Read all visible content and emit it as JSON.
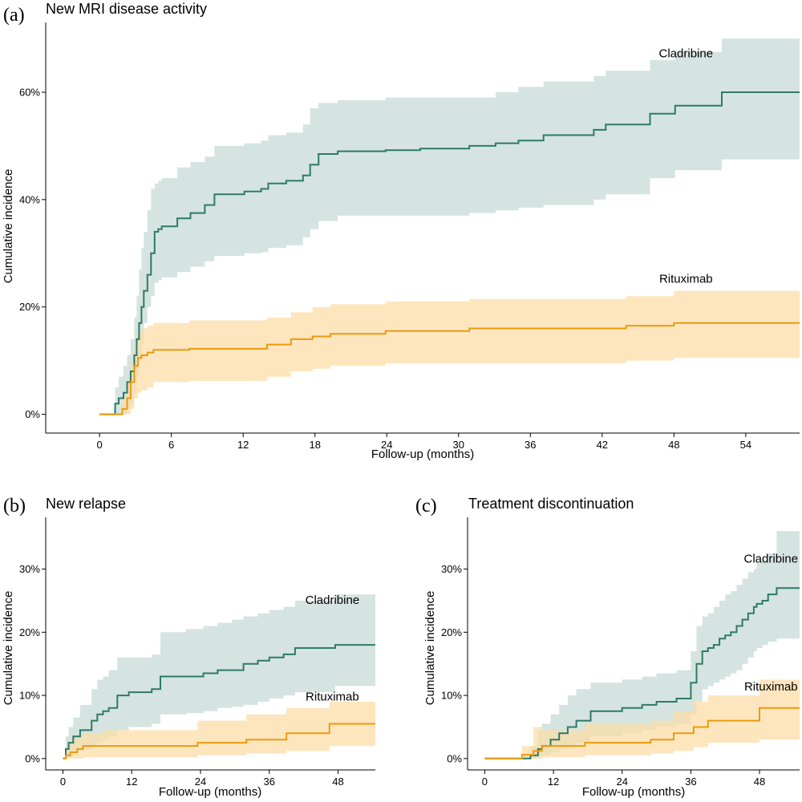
{
  "colors": {
    "cladribine": "#2e7a66",
    "rituximab": "#eb9b0e",
    "cladribine_band": "#c5dad4",
    "rituximab_band": "#fcdca5"
  },
  "chart_data": [
    {
      "id": "a",
      "type": "line",
      "step": true,
      "panel_letter": "(a)",
      "title": "New MRI disease activity",
      "xlabel": "Follow-up (months)",
      "ylabel": "Cumulative incidence",
      "xlim": [
        -4.5,
        58.5
      ],
      "ylim": [
        -0.035,
        0.73
      ],
      "xticks": [
        0,
        6,
        12,
        18,
        24,
        30,
        36,
        42,
        48,
        54
      ],
      "xtick_labels": [
        "0",
        "6",
        "12",
        "18",
        "24",
        "30",
        "36",
        "42",
        "48",
        "54"
      ],
      "yticks": [
        0,
        0.2,
        0.4,
        0.6
      ],
      "ytick_labels": [
        "0%",
        "20%",
        "40%",
        "60%"
      ],
      "series": [
        {
          "name": "Cladribine",
          "label_at": [
            49,
            0.665
          ],
          "x": [
            0,
            1.3,
            1.6,
            2.0,
            2.3,
            2.6,
            2.9,
            3.1,
            3.3,
            3.5,
            3.7,
            4.0,
            4.3,
            4.6,
            4.9,
            5.2,
            6.5,
            7.6,
            8.8,
            9.6,
            12.1,
            13.5,
            14.1,
            15.6,
            17.0,
            17.6,
            18.3,
            19.9,
            23.9,
            26.8,
            30.9,
            33.1,
            35.0,
            37.1,
            41.3,
            42.3,
            46.0,
            48.1,
            52.0,
            58.5
          ],
          "y": [
            0,
            0.02,
            0.03,
            0.04,
            0.06,
            0.08,
            0.11,
            0.14,
            0.17,
            0.2,
            0.23,
            0.26,
            0.3,
            0.34,
            0.345,
            0.35,
            0.365,
            0.375,
            0.39,
            0.41,
            0.415,
            0.42,
            0.43,
            0.435,
            0.445,
            0.465,
            0.485,
            0.49,
            0.492,
            0.495,
            0.5,
            0.505,
            0.51,
            0.52,
            0.53,
            0.54,
            0.56,
            0.575,
            0.6,
            0.6
          ],
          "lower": [
            0,
            0,
            0,
            0,
            0.01,
            0.02,
            0.04,
            0.07,
            0.1,
            0.13,
            0.17,
            0.2,
            0.22,
            0.245,
            0.25,
            0.255,
            0.265,
            0.275,
            0.285,
            0.295,
            0.3,
            0.302,
            0.31,
            0.315,
            0.33,
            0.345,
            0.36,
            0.37,
            0.37,
            0.37,
            0.375,
            0.38,
            0.385,
            0.39,
            0.4,
            0.41,
            0.44,
            0.455,
            0.475,
            0.475
          ],
          "upper": [
            0,
            0.05,
            0.07,
            0.09,
            0.11,
            0.14,
            0.18,
            0.22,
            0.27,
            0.31,
            0.34,
            0.38,
            0.42,
            0.43,
            0.435,
            0.44,
            0.46,
            0.47,
            0.48,
            0.5,
            0.505,
            0.51,
            0.52,
            0.525,
            0.54,
            0.57,
            0.58,
            0.585,
            0.59,
            0.59,
            0.59,
            0.6,
            0.61,
            0.62,
            0.63,
            0.64,
            0.66,
            0.675,
            0.7,
            0.7
          ]
        },
        {
          "name": "Rituximab",
          "label_at": [
            49,
            0.245
          ],
          "x": [
            0,
            1.9,
            2.3,
            2.6,
            2.9,
            3.2,
            3.5,
            4.0,
            4.5,
            7.5,
            14.0,
            16.0,
            17.8,
            19.3,
            23.9,
            30.9,
            44.0,
            48.0,
            58.5
          ],
          "y": [
            0,
            0.01,
            0.03,
            0.06,
            0.09,
            0.105,
            0.11,
            0.115,
            0.12,
            0.122,
            0.13,
            0.14,
            0.145,
            0.15,
            0.155,
            0.16,
            0.165,
            0.17,
            0.17
          ],
          "lower": [
            0,
            0,
            0,
            0.01,
            0.03,
            0.04,
            0.045,
            0.05,
            0.06,
            0.062,
            0.07,
            0.08,
            0.085,
            0.09,
            0.095,
            0.095,
            0.1,
            0.105,
            0.105
          ],
          "upper": [
            0,
            0.03,
            0.07,
            0.1,
            0.13,
            0.15,
            0.16,
            0.165,
            0.17,
            0.175,
            0.18,
            0.19,
            0.2,
            0.205,
            0.21,
            0.215,
            0.22,
            0.23,
            0.23
          ]
        }
      ]
    },
    {
      "id": "b",
      "type": "line",
      "step": true,
      "panel_letter": "(b)",
      "title": "New relapse",
      "xlabel": "Follow-up (months)",
      "ylabel": "Cumulative incidence",
      "xlim": [
        -3,
        54.5
      ],
      "ylim": [
        -0.018,
        0.382
      ],
      "xticks": [
        0,
        12,
        24,
        36,
        48
      ],
      "xtick_labels": [
        "0",
        "12",
        "24",
        "36",
        "48"
      ],
      "yticks": [
        0,
        0.1,
        0.2,
        0.3
      ],
      "ytick_labels": [
        "0%",
        "10%",
        "20%",
        "30%"
      ],
      "series": [
        {
          "name": "Cladribine",
          "label_at": [
            47,
            0.245
          ],
          "x": [
            0,
            0.5,
            1.0,
            1.8,
            3.0,
            5.0,
            6.0,
            7.0,
            8.0,
            9.5,
            11.5,
            15.5,
            17.0,
            21.5,
            24.5,
            27.0,
            29.5,
            31.5,
            34.0,
            36.0,
            38.5,
            40.5,
            47.5,
            54.5
          ],
          "y": [
            0,
            0.015,
            0.025,
            0.035,
            0.045,
            0.06,
            0.07,
            0.075,
            0.08,
            0.1,
            0.105,
            0.11,
            0.13,
            0.13,
            0.135,
            0.14,
            0.14,
            0.15,
            0.155,
            0.16,
            0.165,
            0.175,
            0.18,
            0.18
          ],
          "lower": [
            0,
            0,
            0.003,
            0.01,
            0.015,
            0.02,
            0.025,
            0.03,
            0.035,
            0.045,
            0.05,
            0.055,
            0.07,
            0.072,
            0.075,
            0.08,
            0.082,
            0.085,
            0.09,
            0.095,
            0.1,
            0.105,
            0.115,
            0.115
          ],
          "upper": [
            0,
            0.035,
            0.05,
            0.065,
            0.085,
            0.11,
            0.125,
            0.13,
            0.14,
            0.16,
            0.16,
            0.165,
            0.2,
            0.205,
            0.21,
            0.215,
            0.22,
            0.225,
            0.23,
            0.235,
            0.24,
            0.25,
            0.26,
            0.26
          ]
        },
        {
          "name": "Rituximab",
          "label_at": [
            47,
            0.092
          ],
          "x": [
            0,
            0.5,
            1.3,
            2.5,
            3.5,
            7.0,
            23.5,
            32.0,
            39.0,
            46.5,
            54.5
          ],
          "y": [
            0,
            0.005,
            0.01,
            0.015,
            0.02,
            0.02,
            0.025,
            0.03,
            0.04,
            0.055,
            0.055
          ],
          "lower": [
            0,
            0,
            0,
            0,
            0.002,
            0.002,
            0.005,
            0.008,
            0.012,
            0.02,
            0.02
          ],
          "upper": [
            0,
            0.02,
            0.03,
            0.035,
            0.04,
            0.045,
            0.06,
            0.07,
            0.08,
            0.09,
            0.09
          ]
        }
      ]
    },
    {
      "id": "c",
      "type": "line",
      "step": true,
      "panel_letter": "(c)",
      "title": "Treatment discontinuation",
      "xlabel": "Follow-up (months)",
      "ylabel": "Cumulative incidence",
      "xlim": [
        -3,
        55
      ],
      "ylim": [
        -0.018,
        0.382
      ],
      "xticks": [
        0,
        12,
        24,
        36,
        48
      ],
      "xtick_labels": [
        "0",
        "12",
        "24",
        "36",
        "48"
      ],
      "yticks": [
        0,
        0.1,
        0.2,
        0.3
      ],
      "ytick_labels": [
        "0%",
        "10%",
        "20%",
        "30%"
      ],
      "series": [
        {
          "name": "Cladribine",
          "label_at": [
            50,
            0.31
          ],
          "x": [
            0,
            8.0,
            9.3,
            10.0,
            11.5,
            13.0,
            14.5,
            16.0,
            18.5,
            24.0,
            27.5,
            30.0,
            33.5,
            36.0,
            37.0,
            38.0,
            39.0,
            40.0,
            41.0,
            42.0,
            43.0,
            44.0,
            45.0,
            46.0,
            47.0,
            47.5,
            48.5,
            49.5,
            51.0,
            55.0
          ],
          "y": [
            0,
            0.005,
            0.015,
            0.02,
            0.03,
            0.04,
            0.05,
            0.06,
            0.075,
            0.08,
            0.085,
            0.09,
            0.095,
            0.12,
            0.15,
            0.17,
            0.175,
            0.18,
            0.19,
            0.195,
            0.2,
            0.21,
            0.22,
            0.23,
            0.24,
            0.245,
            0.25,
            0.26,
            0.27,
            0.27
          ],
          "lower": [
            0,
            0,
            0.002,
            0.005,
            0.01,
            0.015,
            0.02,
            0.025,
            0.035,
            0.04,
            0.045,
            0.05,
            0.055,
            0.07,
            0.09,
            0.11,
            0.115,
            0.12,
            0.125,
            0.13,
            0.135,
            0.14,
            0.15,
            0.16,
            0.17,
            0.175,
            0.18,
            0.185,
            0.19,
            0.19
          ],
          "upper": [
            0,
            0.02,
            0.045,
            0.055,
            0.07,
            0.085,
            0.1,
            0.11,
            0.12,
            0.125,
            0.13,
            0.135,
            0.14,
            0.17,
            0.21,
            0.225,
            0.23,
            0.24,
            0.25,
            0.26,
            0.265,
            0.275,
            0.285,
            0.295,
            0.3,
            0.31,
            0.315,
            0.325,
            0.36,
            0.36
          ]
        },
        {
          "name": "Rituximab",
          "label_at": [
            50,
            0.108
          ],
          "x": [
            0,
            6.5,
            8.5,
            10.0,
            17.5,
            29.0,
            33.0,
            36.5,
            39.0,
            48.0,
            55.0
          ],
          "y": [
            0,
            0.006,
            0.012,
            0.02,
            0.025,
            0.03,
            0.04,
            0.05,
            0.06,
            0.08,
            0.08
          ],
          "lower": [
            0,
            0,
            0,
            0.002,
            0.005,
            0.008,
            0.012,
            0.018,
            0.025,
            0.03,
            0.03
          ],
          "upper": [
            0,
            0.02,
            0.05,
            0.045,
            0.055,
            0.06,
            0.075,
            0.09,
            0.1,
            0.125,
            0.125
          ]
        }
      ]
    }
  ]
}
